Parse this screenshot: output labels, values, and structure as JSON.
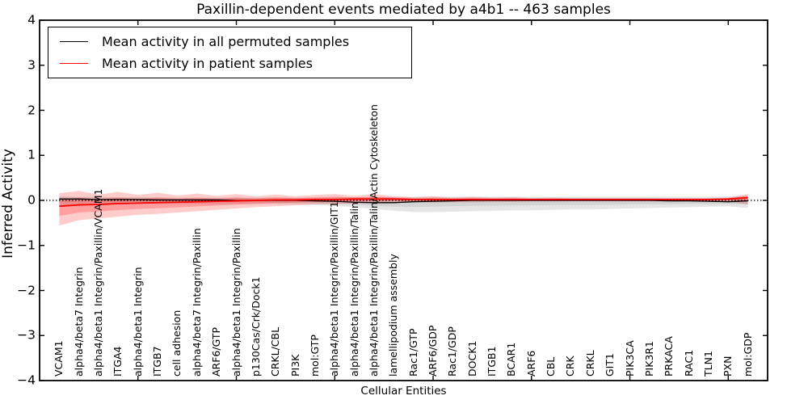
{
  "chart_data": {
    "type": "line",
    "title": "Paxillin-dependent events mediated by a4b1 -- 463 samples",
    "xlabel": "Cellular Entities",
    "ylabel": "Inferred Activity",
    "xlim": [
      0,
      37
    ],
    "ylim": [
      -4,
      4
    ],
    "yticks": [
      4,
      3,
      2,
      1,
      0,
      -1,
      -2,
      -3,
      -4
    ],
    "ytick_labels": [
      "4",
      "3",
      "2",
      "1",
      "0",
      "−1",
      "−2",
      "−3",
      "−4"
    ],
    "x_minor_ticks": [
      5,
      10,
      15,
      20,
      25,
      30,
      35
    ],
    "grid": false,
    "legend_position": "upper left",
    "zero_line": {
      "y": 0,
      "style": "dotted",
      "color": "#000000"
    },
    "band_inner_scale": 0.5,
    "categories": [
      "VCAM1",
      "alpha4/beta7 Integrin",
      "alpha4/beta1 Integrin/Paxillin/VCAM1",
      "ITGA4",
      "alpha4/beta1 Integrin",
      "ITGB7",
      "cell adhesion",
      "alpha4/beta7 Integrin/Paxillin",
      "ARF6/GTP",
      "alpha4/beta1 Integrin/Paxillin",
      "p130Cas/Crk/Dock1",
      "CRKL/CBL",
      "PI3K",
      "mol:GTP",
      "alpha4/beta1 Integrin/Paxillin/GIT1",
      "alpha4/beta1 Integrin/Paxillin/Talin",
      "alpha4/beta1 Integrin/Paxillin/Talin/Actin Cytoskeleton",
      "lamellipodium assembly",
      "Rac1/GTP",
      "ARF6/GDP",
      "Rac1/GDP",
      "DOCK1",
      "ITGB1",
      "BCAR1",
      "ARF6",
      "CBL",
      "CRK",
      "CRKL",
      "GIT1",
      "PIK3CA",
      "PIK3R1",
      "PRKACA",
      "RAC1",
      "TLN1",
      "PXN",
      "mol:GDP"
    ],
    "series": [
      {
        "name": "Mean activity in all permuted samples",
        "color": "#000000",
        "band_color": "rgba(0,0,0,0.10)",
        "values": [
          0.03,
          0.03,
          0.02,
          0.02,
          0.02,
          0.01,
          0.01,
          0.01,
          0.01,
          0.0,
          0.0,
          0.0,
          0.0,
          -0.01,
          -0.02,
          -0.04,
          -0.05,
          -0.05,
          -0.03,
          -0.02,
          -0.01,
          0.0,
          0.0,
          0.0,
          0.0,
          0.0,
          0.0,
          0.0,
          0.0,
          0.0,
          0.0,
          -0.01,
          -0.01,
          -0.02,
          -0.03,
          -0.01
        ],
        "band_upper": [
          0.09,
          0.08,
          0.08,
          0.07,
          0.07,
          0.07,
          0.06,
          0.06,
          0.06,
          0.06,
          0.06,
          0.06,
          0.06,
          0.06,
          0.07,
          0.07,
          0.07,
          0.08,
          0.08,
          0.08,
          0.08,
          0.08,
          0.08,
          0.08,
          0.08,
          0.08,
          0.08,
          0.08,
          0.08,
          0.08,
          0.08,
          0.08,
          0.08,
          0.08,
          0.09,
          0.11
        ],
        "band_lower": [
          -0.11,
          -0.1,
          -0.09,
          -0.09,
          -0.08,
          -0.08,
          -0.08,
          -0.08,
          -0.08,
          -0.08,
          -0.08,
          -0.08,
          -0.09,
          -0.1,
          -0.12,
          -0.15,
          -0.19,
          -0.23,
          -0.26,
          -0.26,
          -0.25,
          -0.24,
          -0.23,
          -0.22,
          -0.22,
          -0.21,
          -0.2,
          -0.2,
          -0.19,
          -0.18,
          -0.17,
          -0.16,
          -0.15,
          -0.14,
          -0.13,
          -0.17
        ]
      },
      {
        "name": "Mean activity in patient samples",
        "color": "#ff0000",
        "band_color": "rgba(255,0,0,0.20)",
        "values": [
          -0.13,
          -0.1,
          -0.09,
          -0.07,
          -0.06,
          -0.05,
          -0.04,
          -0.03,
          -0.02,
          -0.01,
          0.0,
          0.01,
          0.01,
          0.02,
          0.02,
          0.03,
          0.03,
          0.03,
          0.02,
          0.02,
          0.02,
          0.02,
          0.02,
          0.02,
          0.02,
          0.02,
          0.02,
          0.02,
          0.02,
          0.02,
          0.02,
          0.02,
          0.02,
          0.02,
          0.03,
          0.06
        ],
        "band_upper": [
          0.16,
          0.21,
          0.13,
          0.19,
          0.12,
          0.17,
          0.11,
          0.15,
          0.1,
          0.14,
          0.09,
          0.13,
          0.09,
          0.12,
          0.14,
          0.1,
          0.14,
          0.09,
          0.07,
          0.09,
          0.06,
          0.08,
          0.06,
          0.07,
          0.05,
          0.06,
          0.05,
          0.05,
          0.05,
          0.05,
          0.05,
          0.05,
          0.05,
          0.05,
          0.06,
          0.14
        ],
        "band_lower": [
          -0.56,
          -0.44,
          -0.4,
          -0.36,
          -0.32,
          -0.3,
          -0.27,
          -0.24,
          -0.21,
          -0.18,
          -0.15,
          -0.13,
          -0.11,
          -0.09,
          -0.08,
          -0.07,
          -0.06,
          -0.05,
          -0.04,
          -0.05,
          -0.04,
          -0.04,
          -0.03,
          -0.03,
          -0.02,
          -0.02,
          -0.02,
          -0.02,
          -0.02,
          -0.02,
          -0.02,
          -0.02,
          -0.02,
          -0.02,
          -0.03,
          -0.09
        ]
      }
    ]
  }
}
